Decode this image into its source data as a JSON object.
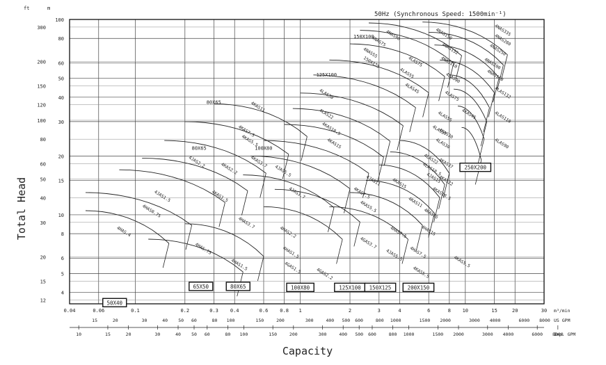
{
  "chart_data": {
    "type": "line",
    "title": "50Hz (Synchronous Speed: 1500min⁻¹)",
    "xlabel": "Capacity",
    "ylabel": "Total Head",
    "x_scale": "log",
    "y_scale": "log",
    "x_unit_primary": "m³/min",
    "x_unit_us": "US GPM",
    "x_unit_imp": "Imp. GPM",
    "y_unit_ft": "ft",
    "y_unit_m": "m",
    "xlim": [
      0.04,
      30
    ],
    "ylim": [
      3.5,
      100
    ],
    "grid": true,
    "x_ticks": [
      {
        "v": 0.04,
        "label": "0.04"
      },
      {
        "v": 0.06,
        "label": "0.06"
      },
      {
        "v": 0.1,
        "label": "0.1"
      },
      {
        "v": 0.2,
        "label": "0.2"
      },
      {
        "v": 0.3,
        "label": "0.3"
      },
      {
        "v": 0.4,
        "label": "0.4"
      },
      {
        "v": 0.6,
        "label": "0.6"
      },
      {
        "v": 0.8,
        "label": "0.8"
      },
      {
        "v": 1,
        "label": "1"
      },
      {
        "v": 2,
        "label": "2"
      },
      {
        "v": 3,
        "label": "3"
      },
      {
        "v": 4,
        "label": "4"
      },
      {
        "v": 6,
        "label": "6"
      },
      {
        "v": 8,
        "label": "8"
      },
      {
        "v": 10,
        "label": "10"
      },
      {
        "v": 15,
        "label": "15"
      },
      {
        "v": 20,
        "label": "20"
      },
      {
        "v": 30,
        "label": "30"
      }
    ],
    "x_ticks_us": [
      {
        "v": 15,
        "label": "15"
      },
      {
        "v": 20,
        "label": "20"
      },
      {
        "v": 30,
        "label": "30"
      },
      {
        "v": 40,
        "label": "40"
      },
      {
        "v": 50,
        "label": "50"
      },
      {
        "v": 60,
        "label": "60"
      },
      {
        "v": 80,
        "label": "80"
      },
      {
        "v": 100,
        "label": "100"
      },
      {
        "v": 150,
        "label": "150"
      },
      {
        "v": 200,
        "label": "200"
      },
      {
        "v": 300,
        "label": "300"
      },
      {
        "v": 400,
        "label": "400"
      },
      {
        "v": 500,
        "label": "500"
      },
      {
        "v": 600,
        "label": "600"
      },
      {
        "v": 800,
        "label": "800"
      },
      {
        "v": 1000,
        "label": "1000"
      },
      {
        "v": 1500,
        "label": "1500"
      },
      {
        "v": 2000,
        "label": "2000"
      },
      {
        "v": 3000,
        "label": "3000"
      },
      {
        "v": 4000,
        "label": "4000"
      },
      {
        "v": 6000,
        "label": "6000"
      },
      {
        "v": 8000,
        "label": "8000"
      }
    ],
    "x_ticks_imp": [
      {
        "v": 10,
        "label": "10"
      },
      {
        "v": 15,
        "label": "15"
      },
      {
        "v": 20,
        "label": "20"
      },
      {
        "v": 30,
        "label": "30"
      },
      {
        "v": 40,
        "label": "40"
      },
      {
        "v": 50,
        "label": "50"
      },
      {
        "v": 60,
        "label": "60"
      },
      {
        "v": 80,
        "label": "80"
      },
      {
        "v": 100,
        "label": "100"
      },
      {
        "v": 150,
        "label": "150"
      },
      {
        "v": 200,
        "label": "200"
      },
      {
        "v": 300,
        "label": "300"
      },
      {
        "v": 400,
        "label": "400"
      },
      {
        "v": 500,
        "label": "500"
      },
      {
        "v": 600,
        "label": "600"
      },
      {
        "v": 800,
        "label": "800"
      },
      {
        "v": 1000,
        "label": "1000"
      },
      {
        "v": 1500,
        "label": "1500"
      },
      {
        "v": 2000,
        "label": "2000"
      },
      {
        "v": 3000,
        "label": "3000"
      },
      {
        "v": 4000,
        "label": "4000"
      },
      {
        "v": 6000,
        "label": "6000"
      },
      {
        "v": 8000,
        "label": "8000"
      }
    ],
    "y_ticks_m": [
      {
        "v": 4,
        "label": "4"
      },
      {
        "v": 5,
        "label": "5"
      },
      {
        "v": 6,
        "label": "6"
      },
      {
        "v": 8,
        "label": "8"
      },
      {
        "v": 10,
        "label": "10"
      },
      {
        "v": 15,
        "label": "15"
      },
      {
        "v": 20,
        "label": "20"
      },
      {
        "v": 30,
        "label": "30"
      },
      {
        "v": 40,
        "label": "40"
      },
      {
        "v": 50,
        "label": "50"
      },
      {
        "v": 60,
        "label": "60"
      },
      {
        "v": 80,
        "label": "80"
      },
      {
        "v": 100,
        "label": "100"
      }
    ],
    "y_ticks_ft": [
      {
        "v": 12,
        "label": "12"
      },
      {
        "v": 15,
        "label": "15"
      },
      {
        "v": 20,
        "label": "20"
      },
      {
        "v": 30,
        "label": "30"
      },
      {
        "v": 40,
        "label": "40"
      },
      {
        "v": 50,
        "label": "50"
      },
      {
        "v": 60,
        "label": "60"
      },
      {
        "v": 80,
        "label": "80"
      },
      {
        "v": 100,
        "label": "100"
      },
      {
        "v": 120,
        "label": "120"
      },
      {
        "v": 150,
        "label": "150"
      },
      {
        "v": 200,
        "label": "200"
      },
      {
        "v": 300,
        "label": "300"
      }
    ],
    "size_boxes": [
      {
        "label": "50X40",
        "x": 0.075,
        "y": 3.55
      },
      {
        "label": "65X50",
        "x": 0.25,
        "y": 4.3
      },
      {
        "label": "80X65",
        "x": 0.42,
        "y": 4.3
      },
      {
        "label": "100X80",
        "x": 1.0,
        "y": 4.25
      },
      {
        "label": "125X100",
        "x": 2.0,
        "y": 4.25
      },
      {
        "label": "150X125",
        "x": 3.05,
        "y": 4.25
      },
      {
        "label": "200X150",
        "x": 5.2,
        "y": 4.25
      },
      {
        "label": "250X200",
        "x": 11.5,
        "y": 17.5
      }
    ],
    "frame_labels": [
      {
        "label": "150X100",
        "x": 2.1,
        "y": 80
      },
      {
        "label": "125X100",
        "x": 1.25,
        "y": 51
      },
      {
        "label": "80X65",
        "x": 0.27,
        "y": 37
      },
      {
        "label": "80X65",
        "x": 0.22,
        "y": 21.5
      },
      {
        "label": "100X80",
        "x": 0.53,
        "y": 21.5
      }
    ],
    "model_labels": [
      {
        "label": "4KAS11",
        "x": 0.5,
        "y": 37
      },
      {
        "label": "4KAS7.5",
        "x": 0.42,
        "y": 28
      },
      {
        "label": "4KAS5.5",
        "x": 0.44,
        "y": 25
      },
      {
        "label": "4KAS3.7",
        "x": 0.5,
        "y": 19.5
      },
      {
        "label": "4JAS2.2",
        "x": 0.21,
        "y": 19.5
      },
      {
        "label": "4JAS1.5",
        "x": 0.13,
        "y": 13
      },
      {
        "label": "4KAS2.2",
        "x": 0.33,
        "y": 18
      },
      {
        "label": "4KAS1.5",
        "x": 0.29,
        "y": 13
      },
      {
        "label": "4HAS3.7",
        "x": 0.42,
        "y": 9.5
      },
      {
        "label": "4HAS0.75",
        "x": 0.11,
        "y": 11
      },
      {
        "label": "4HAS.4",
        "x": 0.077,
        "y": 8.5
      },
      {
        "label": "4HAS.75",
        "x": 0.23,
        "y": 7
      },
      {
        "label": "4HAS1.5",
        "x": 0.38,
        "y": 5.8
      },
      {
        "label": "4JAS5.5",
        "x": 0.7,
        "y": 17.5
      },
      {
        "label": "4JAS3.7",
        "x": 0.85,
        "y": 13.5
      },
      {
        "label": "4HAS2.2",
        "x": 0.75,
        "y": 8.5
      },
      {
        "label": "4HAS1.5",
        "x": 0.78,
        "y": 6.7
      },
      {
        "label": "4GAS1.5",
        "x": 0.8,
        "y": 5.6
      },
      {
        "label": "4GAS2.2",
        "x": 1.25,
        "y": 5.2
      },
      {
        "label": "4JAS11",
        "x": 2.5,
        "y": 15.5
      },
      {
        "label": "4KAS7.5",
        "x": 2.1,
        "y": 13.5
      },
      {
        "label": "4KAS5.5",
        "x": 2.3,
        "y": 11.5
      },
      {
        "label": "4GAS3.7",
        "x": 2.3,
        "y": 7.5
      },
      {
        "label": "4HAS7.5",
        "x": 3.5,
        "y": 8.5
      },
      {
        "label": "4JAS5.5",
        "x": 3.3,
        "y": 6.5
      },
      {
        "label": "4KAS15",
        "x": 3.6,
        "y": 15
      },
      {
        "label": "4KAS11",
        "x": 4.5,
        "y": 12
      },
      {
        "label": "4HAS7.5",
        "x": 4.6,
        "y": 6.7
      },
      {
        "label": "4KAS5.5",
        "x": 4.8,
        "y": 5.3
      },
      {
        "label": "4HAS15",
        "x": 5.4,
        "y": 8.6
      },
      {
        "label": "4KAS15",
        "x": 5.6,
        "y": 10.5
      },
      {
        "label": "4KAS18.5",
        "x": 6.3,
        "y": 13.5
      },
      {
        "label": "4LAS22",
        "x": 5.6,
        "y": 20
      },
      {
        "label": "4LAS18.5",
        "x": 5.5,
        "y": 18
      },
      {
        "label": "4JAS15",
        "x": 5.8,
        "y": 16
      },
      {
        "label": "4KAS22",
        "x": 6.9,
        "y": 15.5
      },
      {
        "label": "4LAS30",
        "x": 6.6,
        "y": 24
      },
      {
        "label": "4LAS37",
        "x": 6.3,
        "y": 28
      },
      {
        "label": "4KAS30",
        "x": 6.9,
        "y": 27
      },
      {
        "label": "4LAS55",
        "x": 6.8,
        "y": 33
      },
      {
        "label": "4KAS37",
        "x": 6.9,
        "y": 19
      },
      {
        "label": "4LAS75",
        "x": 7.5,
        "y": 42
      },
      {
        "label": "4LAS30",
        "x": 1.3,
        "y": 43
      },
      {
        "label": "4LAS22",
        "x": 1.3,
        "y": 34
      },
      {
        "label": "4KAS18.5",
        "x": 1.35,
        "y": 29
      },
      {
        "label": "4KAS15",
        "x": 1.45,
        "y": 24
      },
      {
        "label": "4LAS55",
        "x": 4.0,
        "y": 55
      },
      {
        "label": "4LAS45",
        "x": 4.3,
        "y": 46
      },
      {
        "label": "4LAS75",
        "x": 4.5,
        "y": 63
      },
      {
        "label": "4NAS75",
        "x": 2.7,
        "y": 80
      },
      {
        "label": "4NAS55",
        "x": 2.4,
        "y": 70
      },
      {
        "label": "4NAS90",
        "x": 3.3,
        "y": 86
      },
      {
        "label": "150X125",
        "x": 2.4,
        "y": 63
      },
      {
        "label": "4NAS150",
        "x": 6.6,
        "y": 88
      },
      {
        "label": "4NAS132",
        "x": 7.2,
        "y": 74
      },
      {
        "label": "4NAS110",
        "x": 7.1,
        "y": 63
      },
      {
        "label": "4LAS90",
        "x": 7.6,
        "y": 52
      },
      {
        "label": "4NAS335",
        "x": 15,
        "y": 92
      },
      {
        "label": "4NAS280",
        "x": 15,
        "y": 82
      },
      {
        "label": "4NAS250",
        "x": 14,
        "y": 73
      },
      {
        "label": "4NAS200",
        "x": 13,
        "y": 62
      },
      {
        "label": "4NAS160",
        "x": 13.5,
        "y": 54
      },
      {
        "label": "4LAS132",
        "x": 15,
        "y": 44
      },
      {
        "label": "4LAS110",
        "x": 15,
        "y": 33
      },
      {
        "label": "4LAS90",
        "x": 15,
        "y": 24
      },
      {
        "label": "4KAS45",
        "x": 9.5,
        "y": 34
      },
      {
        "label": "4KAS5.5",
        "x": 8.5,
        "y": 6.0
      }
    ]
  }
}
